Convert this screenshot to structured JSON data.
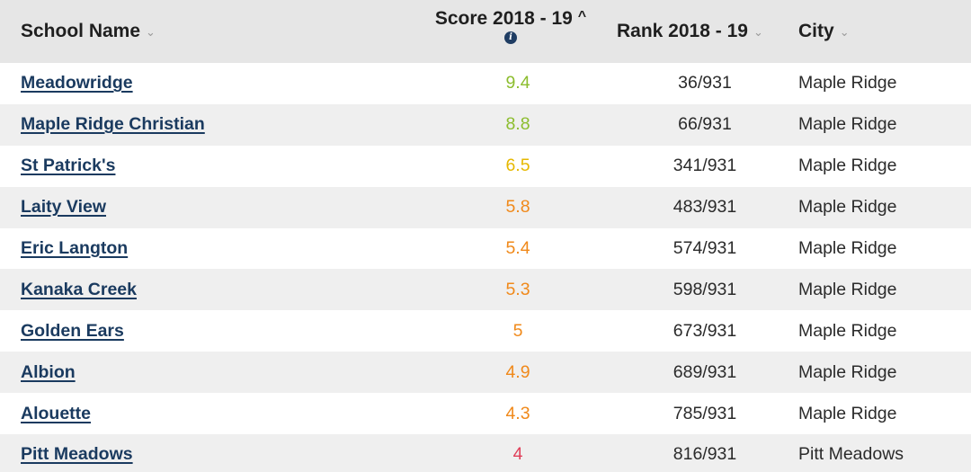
{
  "header": {
    "school_name": "School Name",
    "score_label": "Score 2018 - 19",
    "rank_label": "Rank 2018 - 19",
    "city_label": "City"
  },
  "colors": {
    "header_bg": "#e6e6e6",
    "row_alt_bg": "#efefef",
    "link": "#1a3a5f",
    "score_high": "#8cbd2e",
    "score_mid": "#e6b800",
    "score_lowmid": "#f0891a",
    "score_low": "#e0405a"
  },
  "rows": [
    {
      "name": "Meadowridge",
      "score": "9.4",
      "rank": "36/931",
      "city": "Maple Ridge",
      "score_color": "#8cbd2e"
    },
    {
      "name": "Maple Ridge Christian",
      "score": "8.8",
      "rank": "66/931",
      "city": "Maple Ridge",
      "score_color": "#8cbd2e"
    },
    {
      "name": "St Patrick's",
      "score": "6.5",
      "rank": "341/931",
      "city": "Maple Ridge",
      "score_color": "#e6b800"
    },
    {
      "name": "Laity View",
      "score": "5.8",
      "rank": "483/931",
      "city": "Maple Ridge",
      "score_color": "#f0891a"
    },
    {
      "name": "Eric Langton",
      "score": "5.4",
      "rank": "574/931",
      "city": "Maple Ridge",
      "score_color": "#f0891a"
    },
    {
      "name": "Kanaka Creek",
      "score": "5.3",
      "rank": "598/931",
      "city": "Maple Ridge",
      "score_color": "#f0891a"
    },
    {
      "name": "Golden Ears",
      "score": "5",
      "rank": "673/931",
      "city": "Maple Ridge",
      "score_color": "#f0891a"
    },
    {
      "name": "Albion",
      "score": "4.9",
      "rank": "689/931",
      "city": "Maple Ridge",
      "score_color": "#f0891a"
    },
    {
      "name": "Alouette",
      "score": "4.3",
      "rank": "785/931",
      "city": "Maple Ridge",
      "score_color": "#f0891a"
    },
    {
      "name": "Pitt Meadows",
      "score": "4",
      "rank": "816/931",
      "city": "Pitt Meadows",
      "score_color": "#e0405a"
    }
  ]
}
